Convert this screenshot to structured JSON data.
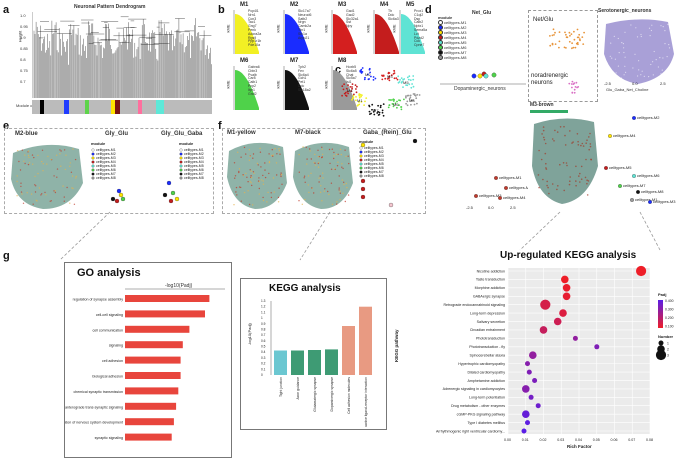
{
  "panel_labels": {
    "a": "a",
    "b": "b",
    "c": "c",
    "d": "d",
    "e": "e",
    "f": "f",
    "g": "g"
  },
  "a": {
    "title": "Neuronal Pattern Dendrogram",
    "ylabel": "Height",
    "module_label": "Module colors",
    "ticks": [
      "1.0",
      "0.95",
      "0.9",
      "0.85",
      "0.8",
      "0.75",
      "0.7"
    ],
    "module_colors": [
      "#bbbbbb",
      "#000000",
      "#bbbbbb",
      "#1f3cff",
      "#bbbbbb",
      "#5ed44a",
      "#bbbbbb",
      "#ffe400",
      "#7a1313",
      "#bbbbbb",
      "#ff6f9e",
      "#bbbbbb",
      "#5ee8d8",
      "#bbbbbb"
    ]
  },
  "b": {
    "modules": [
      {
        "name": "M1",
        "color": "#f2f024",
        "genes": [
          "Pcp4l1",
          "Nrn1",
          "Ccn3",
          "Tac1",
          "Gng7",
          "Penk",
          "Adora2a",
          "Rgs9",
          "Ppp1r1b",
          "Pde10a"
        ]
      },
      {
        "name": "M2",
        "color": "#1a2cff",
        "genes": [
          "Slc17a7",
          "Neurod6",
          "Satb2",
          "Nrgn",
          "Camk2a",
          "Tbr1",
          "Stx1a",
          "Arpp21"
        ]
      },
      {
        "name": "M3",
        "color": "#d41f1f",
        "genes": [
          "Gad1",
          "Gad2",
          "Slc32a1",
          "Sst",
          "Npy"
        ]
      },
      {
        "name": "M4",
        "color": "#c41d1d",
        "genes": [
          "Th",
          "Ddc",
          "Slc6a3"
        ]
      },
      {
        "name": "M5",
        "color": "#5fe3d4",
        "genes": [
          "Prox1",
          "C1ql2",
          "Dsp",
          "Calb2",
          "Nptx1",
          "Sema5a",
          "Lct",
          "Pdzd2",
          "Cck",
          "Cpne7"
        ]
      },
      {
        "name": "M6",
        "color": "#4fd24a",
        "genes": [
          "Gabra6",
          "Cbln3",
          "Pvalb",
          "Car8",
          "Calb1",
          "Pcp2",
          "Itpr1",
          "Grid2"
        ]
      },
      {
        "name": "M7",
        "color": "#111111",
        "genes": [
          "Tph2",
          "Fev",
          "Slc6a4",
          "Gch1",
          "Pet1",
          "Ddc",
          "Slc18a2"
        ]
      },
      {
        "name": "M8",
        "color": "#9a9a9a",
        "genes": [
          "Hoxb5",
          "Slc6a5",
          "Chat",
          "Slc5a7",
          "Isl1"
        ]
      }
    ],
    "ylabel": "kME"
  },
  "c": {
    "clusters": [
      "M1",
      "M2",
      "M3",
      "M4",
      "M5",
      "M6",
      "M7",
      "M8"
    ]
  },
  "d": {
    "left_title": "Net_Glu",
    "module_title": "module",
    "legend": [
      "celltypes-M1",
      "celltypes-M2",
      "celltypes-M3",
      "celltypes-M4",
      "celltypes-M5",
      "celltypes-M6",
      "celltypes-M7",
      "celltypes-M8"
    ],
    "annot_top": "Net/Glu",
    "annot_bottom": "noradrenergic neurons",
    "xaxis_left": "Dopaminergic_neurons",
    "right_title": "Serotonergic_neurons",
    "xaxis_right": "Glu_Gaba_Net_Choline",
    "bottom_title": "M3-brown",
    "xticks": [
      "-2.5",
      "0.0",
      "2.5"
    ],
    "scatter_labels": [
      "celltypes-M2",
      "celltypes-M4",
      "celltypes-M5",
      "celltypes-M6",
      "celltypes-M7",
      "celltypes-M8",
      "celltypes-M1",
      "celltypes-M3"
    ]
  },
  "e": {
    "title_map": "M2-blue",
    "title_mid": "Gly_Glu",
    "title_right": "Gly_Glu_Gaba",
    "module_title": "module",
    "legend": [
      "celltypes-M1",
      "celltypes-M2",
      "celltypes-M3",
      "celltypes-M4",
      "celltypes-M5",
      "celltypes-M6",
      "celltypes-M7",
      "celltypes-M8"
    ]
  },
  "f": {
    "title_1": "M1-yellow",
    "title_2": "M7-black",
    "title_3": "Gaba_(Rein)_Glu",
    "module_title": "module",
    "legend": [
      "celltypes-M1",
      "celltypes-M2",
      "celltypes-M3",
      "celltypes-M4",
      "celltypes-M5",
      "celltypes-M6",
      "celltypes-M7",
      "celltypes-M8"
    ]
  },
  "chart_data": [
    {
      "type": "bar",
      "title": "GO analysis",
      "xlabel": "-log10(Padj)",
      "orientation": "horizontal",
      "xlim": [
        0,
        9
      ],
      "ticks": [
        "0",
        "1",
        "2",
        "3",
        "4",
        "5",
        "6",
        "7",
        "8"
      ],
      "categories": [
        "regulation of synapse assembly",
        "cell-cell signaling",
        "cell communication",
        "signaling",
        "cell adhesion",
        "biological adhesion",
        "chemical synaptic transmission",
        "anterograde trans-synaptic signaling",
        "regulation of nervous system development",
        "synaptic signaling"
      ],
      "values": [
        7.6,
        7.2,
        5.8,
        5.2,
        5.0,
        5.0,
        4.8,
        4.6,
        4.4,
        4.2
      ],
      "color": "#e8453c"
    },
    {
      "type": "bar",
      "title": "KEGG analysis",
      "ylabel": "-log10(Padj)",
      "ylim": [
        0,
        1.3
      ],
      "ticks": [
        "0",
        "0.1",
        "0.2",
        "0.3",
        "0.4",
        "0.5",
        "0.6",
        "0.7",
        "0.8",
        "0.9",
        "1",
        "1.1",
        "1.2",
        "1.3"
      ],
      "categories": [
        "Tight junction",
        "Axon guidance",
        "Glutamatergic synapse",
        "Dopaminergic synapse",
        "Cell adhesion molecules",
        "Neuroactive ligand-receptor interaction"
      ],
      "values": [
        0.43,
        0.43,
        0.44,
        0.45,
        0.86,
        1.2
      ],
      "colors": [
        "#6bc7d1",
        "#3e9b74",
        "#3e9b74",
        "#3e9b74",
        "#e89a82",
        "#e89a82"
      ]
    },
    {
      "type": "scatter",
      "title": "Up-regulated KEGG analysis",
      "xlabel": "Rich Factor",
      "ylabel": "KEGG pathway",
      "xlim": [
        0,
        0.08
      ],
      "xticks": [
        "0.00",
        "0.01",
        "0.02",
        "0.03",
        "0.04",
        "0.05",
        "0.06",
        "0.07",
        "0.08"
      ],
      "categories": [
        "Nicotine addiction",
        "Taste transduction",
        "Morphine addiction",
        "GABAergic synapse",
        "Retrograde endocannabinoid signaling",
        "Long-term depression",
        "Salivary secretion",
        "Circadian entrainment",
        "Phototransduction",
        "Phototransduction - fly",
        "Spinocerebellar ataxia",
        "Hypertrophic cardiomyopathy",
        "Dilated cardiomyopathy",
        "Amphetamine addiction",
        "Adrenergic signaling in cardiomyocytes",
        "Long-term potentiation",
        "Drug metabolism - other enzymes",
        "cGMP-PKG signaling pathway",
        "Type I diabetes mellitus",
        "Arrhythmogenic right ventricular cardiomy..."
      ],
      "x": [
        0.075,
        0.032,
        0.033,
        0.033,
        0.021,
        0.031,
        0.028,
        0.02,
        0.038,
        0.05,
        0.014,
        0.011,
        0.012,
        0.015,
        0.01,
        0.013,
        0.017,
        0.01,
        0.011,
        0.009
      ],
      "padj": [
        0.05,
        0.05,
        0.06,
        0.07,
        0.12,
        0.1,
        0.14,
        0.16,
        0.3,
        0.35,
        0.3,
        0.33,
        0.35,
        0.36,
        0.33,
        0.38,
        0.4,
        0.42,
        0.44,
        0.45
      ],
      "number": [
        3,
        2,
        2,
        2,
        3,
        2,
        2,
        2,
        1,
        1,
        2,
        1,
        1,
        1,
        2,
        1,
        1,
        2,
        1,
        1
      ],
      "legend_padj_title": "Padj",
      "legend_padj_ticks": [
        "0.400",
        "0.300",
        "0.200",
        "0.100"
      ],
      "legend_number_title": "Number",
      "legend_number_ticks": [
        "1",
        "2",
        "3"
      ]
    }
  ]
}
